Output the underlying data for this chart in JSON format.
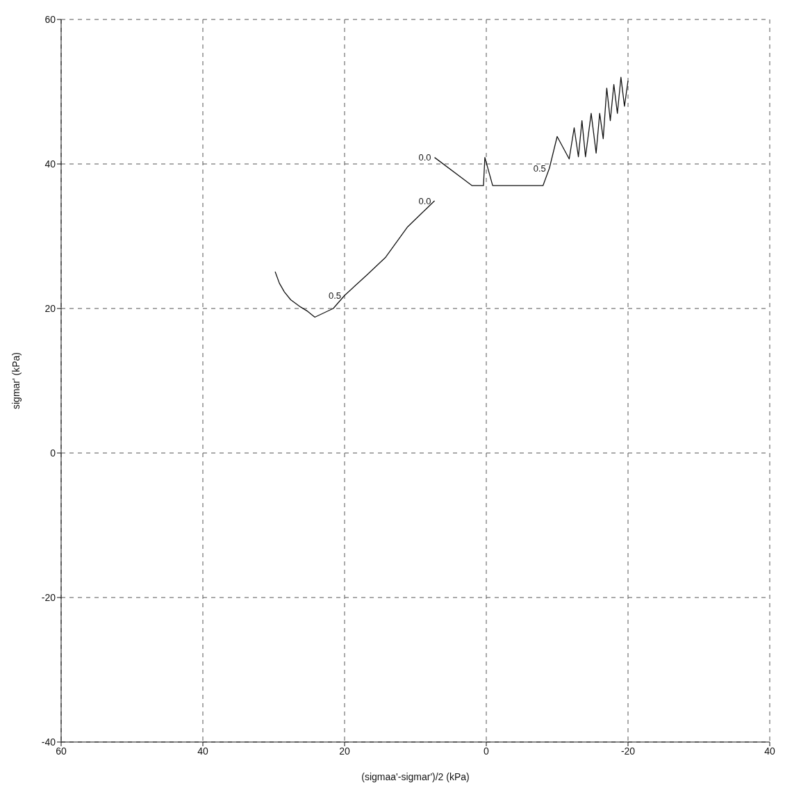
{
  "chart_data": {
    "type": "line",
    "xlabel": "(sigmaa'-sigmar')/2 (kPa)",
    "ylabel": "sigmar' (kPa)",
    "series": [
      {
        "color": "#111111",
        "x": [
          29.8,
          29.2,
          28.5,
          27.6,
          26.2,
          25.2,
          24.2,
          21.6,
          20,
          16.9,
          14.2,
          11.1,
          7.3
        ],
        "values": [
          25.1,
          23.5,
          22.3,
          21.2,
          20.2,
          19.6,
          18.8,
          20,
          21.8,
          24.6,
          27.1,
          31.3,
          34.9
        ]
      },
      {
        "color": "#111111",
        "x": [
          7.3,
          2,
          0.4,
          0.2,
          -0.9,
          -8,
          -8.9,
          -10,
          -11.7,
          -12.4,
          -13,
          -13.5,
          -14,
          -14.8,
          -15.5,
          -16,
          -16.5,
          -17,
          -17.5,
          -18,
          -18.5,
          -19,
          -19.5,
          -20
        ],
        "values": [
          40.9,
          37,
          37,
          40.9,
          37,
          37,
          39.4,
          43.8,
          40.7,
          45,
          41,
          46,
          41,
          47,
          41.5,
          47,
          43.5,
          50.5,
          46,
          51,
          47,
          52,
          48,
          51.5
        ]
      }
    ],
    "xlim": [
      60,
      -40
    ],
    "xticks": [
      60,
      40,
      20,
      0,
      -20,
      {
        "value": -40,
        "label": "40"
      }
    ],
    "ylim": [
      -40,
      60
    ],
    "yticks": [
      -40,
      -20,
      0,
      20,
      40,
      60
    ],
    "grid": true,
    "line_style": "solid",
    "marker": "none",
    "annotations": [
      {
        "text": "0.5",
        "x": 20,
        "y": 21.8
      },
      {
        "text": "0.0",
        "x": 7.3,
        "y": 34.9
      },
      {
        "text": "0.0",
        "x": 7.3,
        "y": 40.9
      },
      {
        "text": "0.5",
        "x": -8.9,
        "y": 39.4
      }
    ]
  }
}
